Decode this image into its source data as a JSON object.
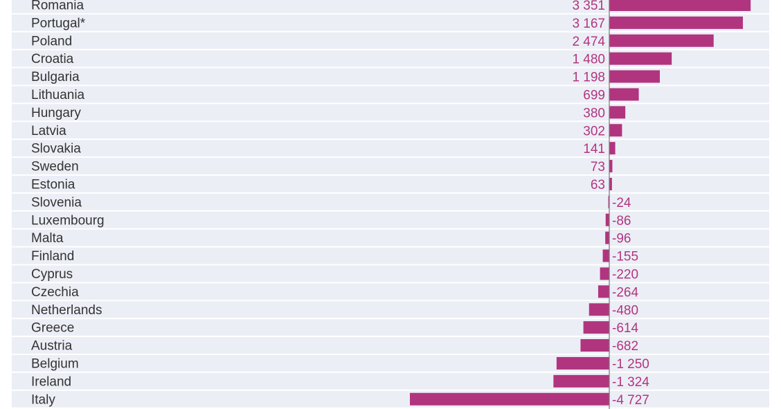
{
  "chart_data": {
    "type": "bar",
    "orientation": "horizontal",
    "categories": [
      "Romania",
      "Portugal*",
      "Poland",
      "Croatia",
      "Bulgaria",
      "Lithuania",
      "Hungary",
      "Latvia",
      "Slovakia",
      "Sweden",
      "Estonia",
      "Slovenia",
      "Luxembourg",
      "Malta",
      "Finland",
      "Cyprus",
      "Czechia",
      "Netherlands",
      "Greece",
      "Austria",
      "Belgium",
      "Ireland",
      "Italy"
    ],
    "values": [
      3351,
      3167,
      2474,
      1480,
      1198,
      699,
      380,
      302,
      141,
      73,
      63,
      -24,
      -86,
      -96,
      -155,
      -220,
      -264,
      -480,
      -614,
      -682,
      -1250,
      -1324,
      -4727
    ],
    "value_labels": [
      "3 351",
      "3 167",
      "2 474",
      "1 480",
      "1 198",
      "699",
      "380",
      "302",
      "141",
      "73",
      "63",
      "-24",
      "-86",
      "-96",
      "-155",
      "-220",
      "-264",
      "-480",
      "-614",
      "-682",
      "-1 250",
      "-1 324",
      "-4 727"
    ],
    "title": "",
    "xlabel": "",
    "ylabel": "",
    "bar_color": "#b0357e",
    "row_band_color": "#eceef6",
    "grid": false,
    "legend": "none"
  }
}
